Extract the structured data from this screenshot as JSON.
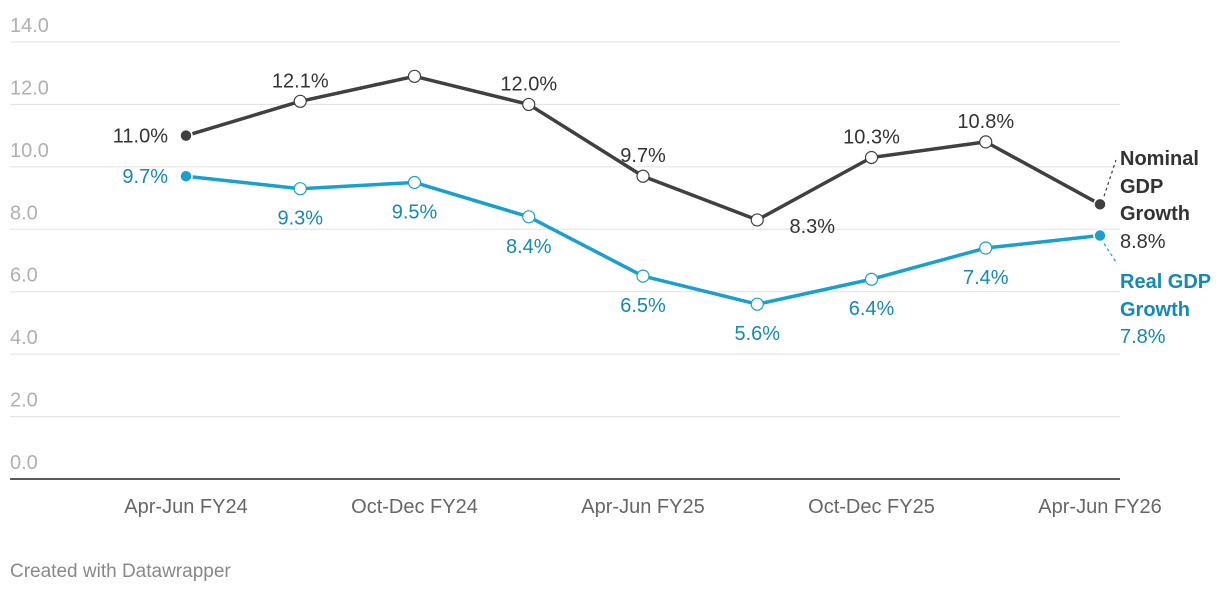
{
  "chart_data": {
    "type": "line",
    "categories": [
      "Apr-Jun FY24",
      null,
      "Oct-Dec FY24",
      null,
      "Apr-Jun FY25",
      null,
      "Oct-Dec FY25",
      null,
      "Apr-Jun FY26"
    ],
    "series": [
      {
        "name": "Nominal GDP Growth",
        "color": "#404040",
        "label_color": "#333333",
        "values": [
          11.0,
          12.1,
          12.9,
          12.0,
          9.7,
          8.3,
          10.3,
          10.8,
          8.8
        ],
        "value_labels": [
          "11.0%",
          "12.1%",
          null,
          "12.0%",
          "9.7%",
          "8.3%",
          "10.3%",
          "10.8%",
          "8.8%"
        ]
      },
      {
        "name": "Real GDP Growth",
        "color": "#1a9fcf",
        "label_color": "#1689b3",
        "values": [
          9.7,
          9.3,
          9.5,
          8.4,
          6.5,
          5.6,
          6.4,
          7.4,
          7.8
        ],
        "value_labels": [
          "9.7%",
          "9.3%",
          "9.5%",
          "8.4%",
          "6.5%",
          "5.6%",
          "6.4%",
          "7.4%",
          "7.8%"
        ]
      }
    ],
    "ylim": [
      0,
      14
    ],
    "yticks": [
      {
        "value": 0,
        "label": "0.0"
      },
      {
        "value": 2,
        "label": "2.0"
      },
      {
        "value": 4,
        "label": "4.0"
      },
      {
        "value": 6,
        "label": "6.0"
      },
      {
        "value": 8,
        "label": "8.0"
      },
      {
        "value": 10,
        "label": "10.0"
      },
      {
        "value": 12,
        "label": "12.0"
      },
      {
        "value": 14,
        "label": "14.0"
      }
    ],
    "grid": true,
    "credit": "Created with Datawrapper"
  }
}
